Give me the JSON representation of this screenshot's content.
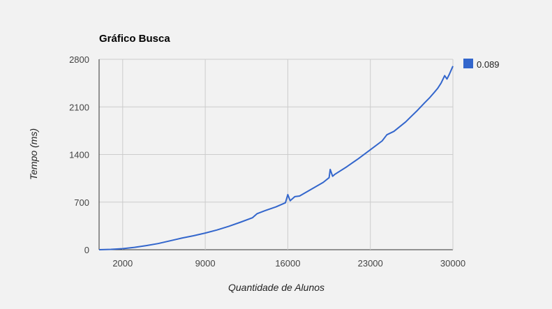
{
  "chart_data": {
    "type": "line",
    "title": "Gráfico Busca",
    "xlabel": "Quantidade de Alunos",
    "ylabel": "Tempo (ms)",
    "xlim": [
      0,
      30000
    ],
    "ylim": [
      0,
      2800
    ],
    "x_ticks": [
      2000,
      9000,
      16000,
      23000,
      30000
    ],
    "y_ticks": [
      0,
      700,
      1400,
      2100,
      2800
    ],
    "grid": true,
    "legend_position": "right",
    "series": [
      {
        "name": "0.089",
        "color": "#3366cc",
        "x": [
          0,
          1000,
          2000,
          3000,
          4000,
          5000,
          6000,
          7000,
          8000,
          9000,
          10000,
          11000,
          12000,
          13000,
          13400,
          14000,
          15000,
          15800,
          16000,
          16200,
          16600,
          17000,
          18000,
          19000,
          19500,
          19600,
          19800,
          20000,
          21000,
          22000,
          23000,
          24000,
          24400,
          25000,
          26000,
          26400,
          27000,
          27600,
          28000,
          28400,
          28700,
          29000,
          29300,
          29500,
          29700,
          30000
        ],
        "values": [
          0,
          5,
          15,
          35,
          60,
          90,
          130,
          170,
          205,
          245,
          290,
          345,
          405,
          470,
          530,
          570,
          630,
          690,
          810,
          720,
          780,
          790,
          890,
          990,
          1060,
          1180,
          1080,
          1110,
          1220,
          1340,
          1470,
          1600,
          1690,
          1740,
          1880,
          1950,
          2050,
          2160,
          2230,
          2310,
          2370,
          2450,
          2560,
          2510,
          2580,
          2700
        ]
      }
    ]
  }
}
